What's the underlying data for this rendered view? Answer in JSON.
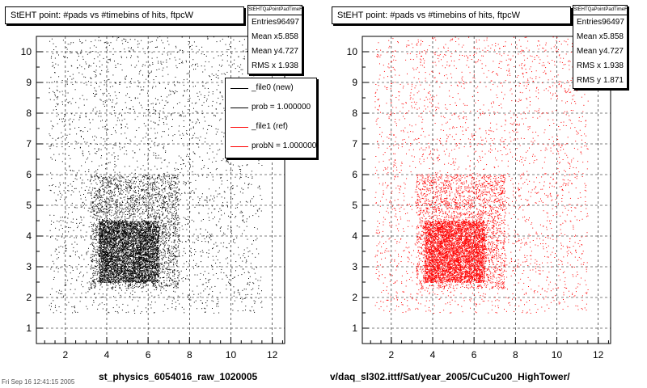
{
  "datestamp": "Fri Sep 16 12:41:15 2005",
  "chart_data": [
    {
      "type": "scatter",
      "title": "StEHT point: #pads vs #timebins of hits, ftpcW",
      "xlabel": "st_physics_6054016_raw_1020005",
      "ylabel": "",
      "xlim": [
        0.6,
        12.6
      ],
      "ylim": [
        0.5,
        10.5
      ],
      "xticks": [
        2,
        4,
        6,
        8,
        10,
        12
      ],
      "yticks": [
        1,
        2,
        3,
        4,
        5,
        6,
        7,
        8,
        9,
        10
      ],
      "grid": true,
      "marker_color": "#000000",
      "stats": {
        "header": "StEHTQaPointPadTimeFtpcW",
        "rows": [
          {
            "label": "Entries",
            "value": "96497"
          },
          {
            "label": "Mean x",
            "value": "5.858"
          },
          {
            "label": "Mean y",
            "value": "4.727"
          },
          {
            "label": "RMS x",
            "value": "1.938"
          }
        ]
      },
      "legend": {
        "placement": "top-right",
        "entries": [
          {
            "label": "_file0 (new)",
            "color": "#000000"
          },
          {
            "label": "prob = 1.000000",
            "color": "#000000"
          },
          {
            "label": "_file1 (ref)",
            "color": "#ff0000"
          },
          {
            "label": "probN = 1.000000",
            "color": "#ff0000"
          }
        ]
      },
      "density": {
        "dense_core": {
          "x": [
            3.6,
            6.5
          ],
          "y": [
            2.5,
            4.5
          ]
        },
        "medium_halo": {
          "x": [
            3.2,
            7.5
          ],
          "y": [
            2.3,
            6.0
          ]
        },
        "diffuse_region": {
          "x": [
            1.2,
            11.5
          ],
          "y": [
            1.5,
            10.5
          ]
        }
      }
    },
    {
      "type": "scatter",
      "title": "StEHT point: #pads vs #timebins of hits, ftpcW",
      "xlabel": "v/daq_sl302.ittf/Sat/year_2005/CuCu200_HighTower/",
      "ylabel": "",
      "xlim": [
        0.6,
        12.6
      ],
      "ylim": [
        0.5,
        10.5
      ],
      "xticks": [
        2,
        4,
        6,
        8,
        10,
        12
      ],
      "yticks": [
        1,
        2,
        3,
        4,
        5,
        6,
        7,
        8,
        9,
        10
      ],
      "grid": true,
      "marker_color": "#ff0000",
      "stats": {
        "header": "StEHTQaPointPadTimeFtpcW",
        "rows": [
          {
            "label": "Entries",
            "value": "96497"
          },
          {
            "label": "Mean x",
            "value": "5.858"
          },
          {
            "label": "Mean y",
            "value": "4.727"
          },
          {
            "label": "RMS x",
            "value": "1.938"
          },
          {
            "label": "RMS y",
            "value": "1.871"
          }
        ]
      },
      "density": {
        "dense_core": {
          "x": [
            3.6,
            6.5
          ],
          "y": [
            2.5,
            4.5
          ]
        },
        "medium_halo": {
          "x": [
            3.2,
            7.5
          ],
          "y": [
            2.3,
            6.0
          ]
        },
        "diffuse_region": {
          "x": [
            1.2,
            11.5
          ],
          "y": [
            1.5,
            10.5
          ]
        }
      }
    }
  ]
}
